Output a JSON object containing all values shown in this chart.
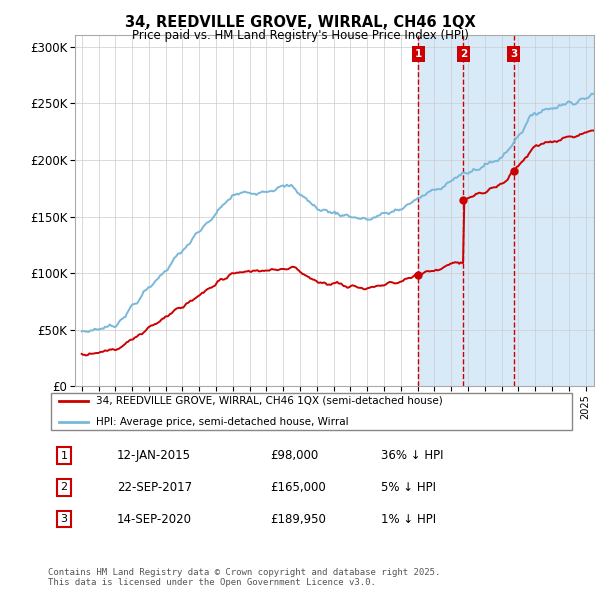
{
  "title1": "34, REEDVILLE GROVE, WIRRAL, CH46 1QX",
  "title2": "Price paid vs. HM Land Registry's House Price Index (HPI)",
  "ylim": [
    0,
    310000
  ],
  "yticks": [
    0,
    50000,
    100000,
    150000,
    200000,
    250000,
    300000
  ],
  "ytick_labels": [
    "£0",
    "£50K",
    "£100K",
    "£150K",
    "£200K",
    "£250K",
    "£300K"
  ],
  "legend_line1": "34, REEDVILLE GROVE, WIRRAL, CH46 1QX (semi-detached house)",
  "legend_line2": "HPI: Average price, semi-detached house, Wirral",
  "transaction1_date": "12-JAN-2015",
  "transaction1_price": 98000,
  "transaction1_note": "36% ↓ HPI",
  "transaction2_date": "22-SEP-2017",
  "transaction2_price": 165000,
  "transaction2_note": "5% ↓ HPI",
  "transaction3_date": "14-SEP-2020",
  "transaction3_price": 189950,
  "transaction3_note": "1% ↓ HPI",
  "footer": "Contains HM Land Registry data © Crown copyright and database right 2025.\nThis data is licensed under the Open Government Licence v3.0.",
  "hpi_color": "#7ab8d9",
  "price_color": "#cc0000",
  "vline_color": "#cc0000",
  "bg_shade_color": "#d8eaf7",
  "grid_color": "#cccccc",
  "t1_year": 2015.04,
  "t2_year": 2017.72,
  "t3_year": 2020.72
}
